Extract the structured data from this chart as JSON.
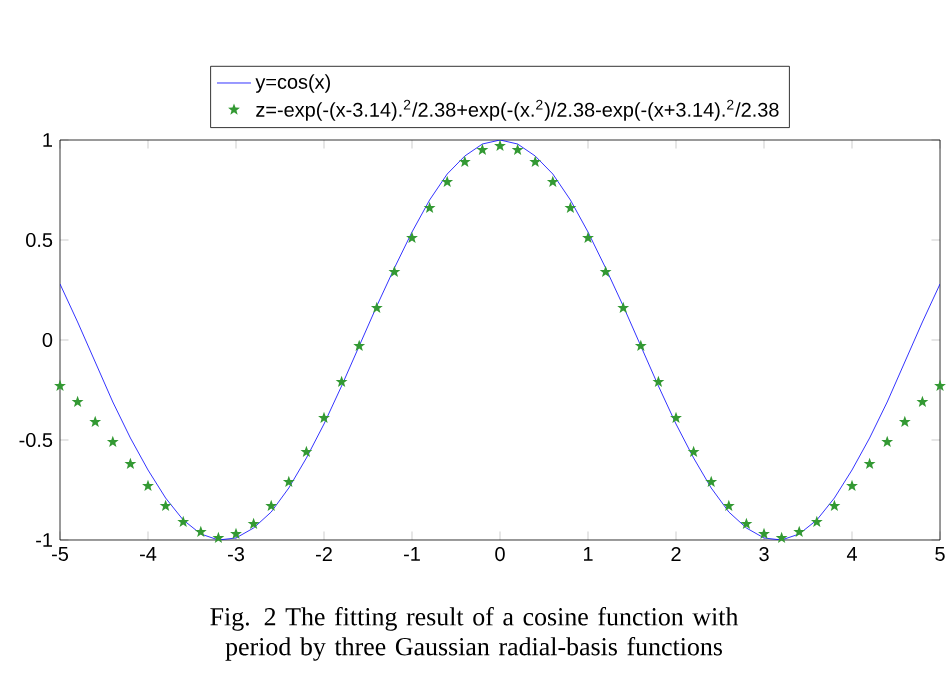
{
  "chart_data": {
    "type": "line",
    "xlim": [
      -5,
      5
    ],
    "ylim": [
      -1,
      1
    ],
    "xticks": [
      -5,
      -4,
      -3,
      -2,
      -1,
      0,
      1,
      2,
      3,
      4,
      5
    ],
    "yticks": [
      -1,
      -0.5,
      0,
      0.5,
      1
    ],
    "grid": false,
    "legend": "top",
    "annotations": [
      "Fig. 2 The fitting result of a cosine function with period by three Gaussian radial-basis functions"
    ],
    "series": [
      {
        "name": "y=cos(x)",
        "type": "line",
        "color": "#0000ff",
        "marker": "none",
        "line_style": "solid",
        "x": [
          -5,
          -4.8,
          -4.6,
          -4.4,
          -4.2,
          -4,
          -3.8,
          -3.6,
          -3.4,
          -3.2,
          -3,
          -2.8,
          -2.6,
          -2.4,
          -2.2,
          -2,
          -1.8,
          -1.6,
          -1.4,
          -1.2,
          -1,
          -0.8,
          -0.6,
          -0.4,
          -0.2,
          0,
          0.2,
          0.4,
          0.6,
          0.8,
          1,
          1.2,
          1.4,
          1.6,
          1.8,
          2,
          2.2,
          2.4,
          2.6,
          2.8,
          3,
          3.2,
          3.4,
          3.6,
          3.8,
          4,
          4.2,
          4.4,
          4.6,
          4.8,
          5
        ],
        "values": [
          0.28,
          0.09,
          -0.11,
          -0.31,
          -0.49,
          -0.65,
          -0.79,
          -0.9,
          -0.97,
          -1.0,
          -0.99,
          -0.94,
          -0.86,
          -0.74,
          -0.59,
          -0.42,
          -0.23,
          -0.03,
          0.17,
          0.36,
          0.54,
          0.7,
          0.83,
          0.92,
          0.98,
          1,
          0.98,
          0.92,
          0.83,
          0.7,
          0.54,
          0.36,
          0.17,
          -0.03,
          -0.23,
          -0.42,
          -0.59,
          -0.74,
          -0.86,
          -0.94,
          -0.99,
          -1.0,
          -0.97,
          -0.9,
          -0.79,
          -0.65,
          -0.49,
          -0.31,
          -0.11,
          0.09,
          0.28
        ]
      },
      {
        "name": "z=-exp(-(x-3.14).$^{2}$/2.38+exp(-(x.$^{2}$)/2.38-exp(-(x+3.14).$^{2}$/2.38",
        "type": "scatter",
        "color": "#339933",
        "marker": "star",
        "x": [
          -5,
          -4.8,
          -4.6,
          -4.4,
          -4.2,
          -4,
          -3.8,
          -3.6,
          -3.4,
          -3.2,
          -3,
          -2.8,
          -2.6,
          -2.4,
          -2.2,
          -2,
          -1.8,
          -1.6,
          -1.4,
          -1.2,
          -1,
          -0.8,
          -0.6,
          -0.4,
          -0.2,
          0,
          0.2,
          0.4,
          0.6,
          0.8,
          1,
          1.2,
          1.4,
          1.6,
          1.8,
          2,
          2.2,
          2.4,
          2.6,
          2.8,
          3,
          3.2,
          3.4,
          3.6,
          3.8,
          4,
          4.2,
          4.4,
          4.6,
          4.8,
          5
        ],
        "values": [
          -0.23,
          -0.31,
          -0.41,
          -0.51,
          -0.62,
          -0.73,
          -0.83,
          -0.91,
          -0.96,
          -0.99,
          -0.97,
          -0.92,
          -0.83,
          -0.71,
          -0.56,
          -0.39,
          -0.21,
          -0.03,
          0.16,
          0.34,
          0.51,
          0.66,
          0.79,
          0.89,
          0.95,
          0.97,
          0.95,
          0.89,
          0.79,
          0.66,
          0.51,
          0.34,
          0.16,
          -0.03,
          -0.21,
          -0.39,
          -0.56,
          -0.71,
          -0.83,
          -0.92,
          -0.97,
          -0.99,
          -0.96,
          -0.91,
          -0.83,
          -0.73,
          -0.62,
          -0.51,
          -0.41,
          -0.31,
          -0.23
        ]
      }
    ]
  }
}
